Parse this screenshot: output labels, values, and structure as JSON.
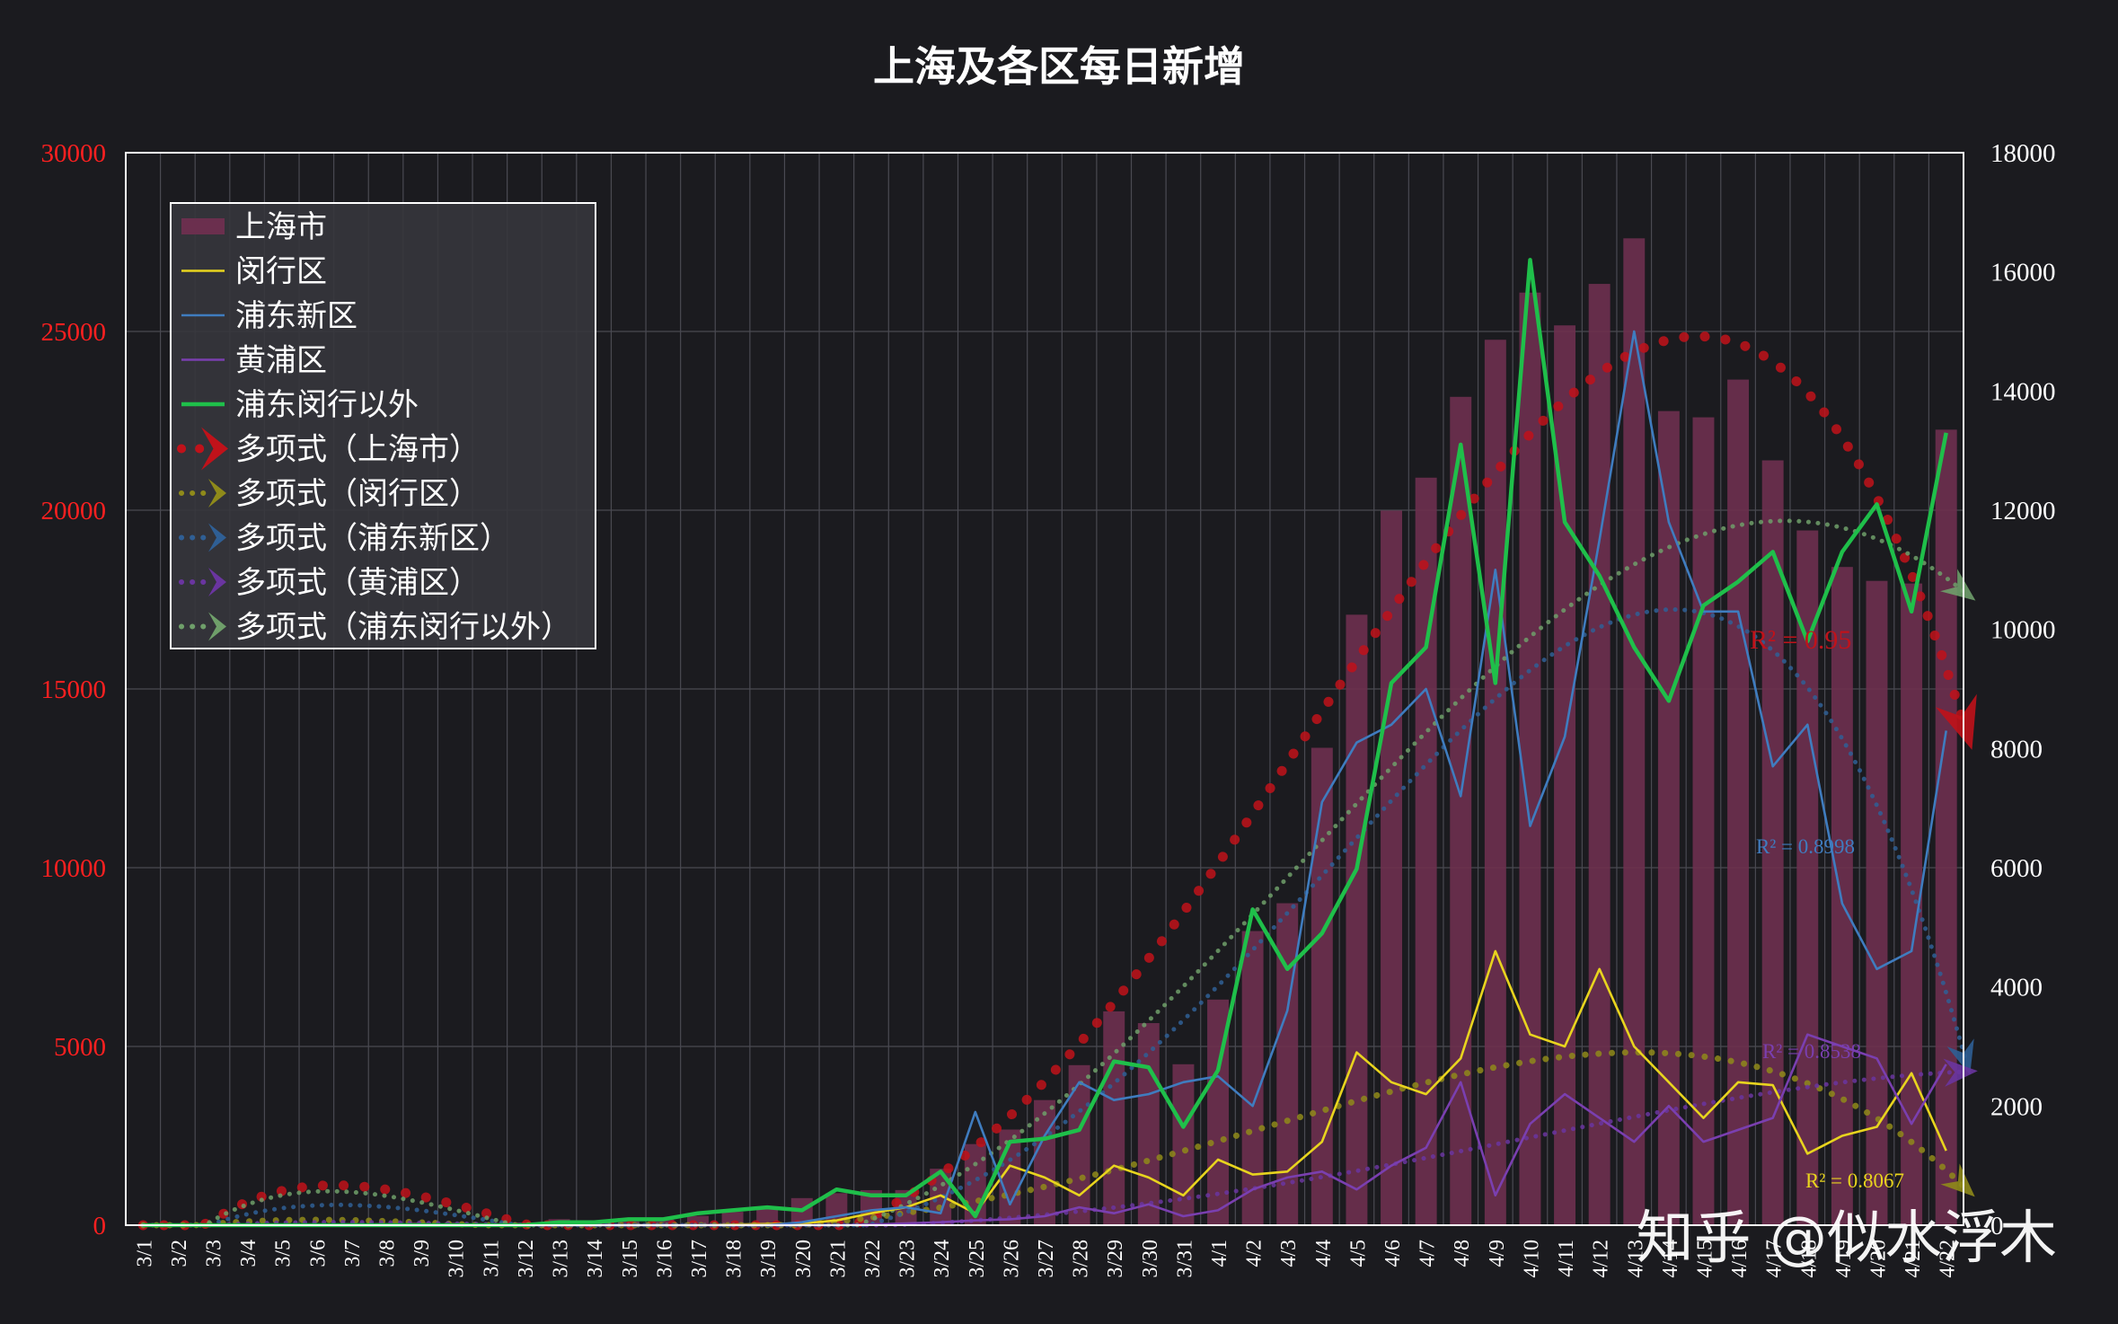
{
  "watermark": "知乎 @似水浮木",
  "colors": {
    "background": "#1b1b1f",
    "plot_border": "#ffffff",
    "grid": "#4a4a52",
    "bar": "#6b2f4e",
    "minhang": "#e8d41e",
    "pudong": "#3f7cbf",
    "huangpu": "#7a3fb0",
    "outside": "#1fbf4a",
    "poly_shanghai": "#c0121a",
    "poly_minhang": "#8f8a1a",
    "poly_pudong": "#2f5f95",
    "poly_huangpu": "#6a35a0",
    "poly_outside": "#6f9f6a",
    "left_axis_text": "#ff2020",
    "right_axis_text": "#ffffff"
  },
  "chart_data": {
    "type": "bar",
    "title": "上海及各区每日新增",
    "legend_position": "top-left",
    "grid": true,
    "categories": [
      "3/1",
      "3/2",
      "3/3",
      "3/4",
      "3/5",
      "3/6",
      "3/7",
      "3/8",
      "3/9",
      "3/10",
      "3/11",
      "3/12",
      "3/13",
      "3/14",
      "3/15",
      "3/16",
      "3/17",
      "3/18",
      "3/19",
      "3/20",
      "3/21",
      "3/22",
      "3/23",
      "3/24",
      "3/25",
      "3/26",
      "3/27",
      "3/28",
      "3/29",
      "3/30",
      "3/31",
      "4/1",
      "4/2",
      "4/3",
      "4/4",
      "4/5",
      "4/6",
      "4/7",
      "4/8",
      "4/9",
      "4/10",
      "4/11",
      "4/12",
      "4/13",
      "4/14",
      "4/15",
      "4/16",
      "4/17",
      "4/18",
      "4/19",
      "4/20",
      "4/21",
      "4/22"
    ],
    "y_left": {
      "ylim": [
        0,
        30000
      ],
      "ticks": [
        "0",
        "5000",
        "10000",
        "15000",
        "20000",
        "25000",
        "30000"
      ]
    },
    "y_right": {
      "ylim": [
        0,
        18000
      ],
      "ticks": [
        "0",
        "2000",
        "4000",
        "6000",
        "8000",
        "10000",
        "12000",
        "14000",
        "16000",
        "18000"
      ]
    },
    "series": [
      {
        "name": "上海市",
        "type": "bar",
        "axis": "left",
        "values": [
          2,
          8,
          5,
          16,
          19,
          45,
          62,
          64,
          79,
          76,
          64,
          76,
          169,
          138,
          202,
          158,
          260,
          374,
          509,
          758,
          896,
          981,
          983,
          1580,
          2269,
          2676,
          3500,
          4477,
          5982,
          5653,
          4502,
          6311,
          8228,
          9006,
          13354,
          17077,
          19989,
          20910,
          23171,
          24768,
          26087,
          25170,
          26330,
          27605,
          22773,
          22598,
          23654,
          21394,
          19434,
          18412,
          18023,
          17950,
          22253
        ]
      },
      {
        "name": "闵行区",
        "type": "line",
        "axis": "right",
        "values": [
          0,
          0,
          0,
          0,
          0,
          0,
          0,
          0,
          0,
          0,
          0,
          0,
          0,
          0,
          0,
          0,
          0,
          10,
          20,
          30,
          80,
          200,
          300,
          500,
          200,
          1000,
          800,
          500,
          1000,
          800,
          500,
          1100,
          850,
          900,
          1400,
          2900,
          2400,
          2200,
          2800,
          4600,
          3200,
          3000,
          4300,
          3000,
          2400,
          1800,
          2400,
          2350,
          1200,
          1500,
          1650,
          2550,
          1250
        ]
      },
      {
        "name": "浦东新区",
        "type": "line",
        "axis": "right",
        "values": [
          0,
          0,
          0,
          0,
          0,
          0,
          0,
          0,
          0,
          0,
          0,
          0,
          0,
          0,
          0,
          0,
          0,
          0,
          0,
          50,
          150,
          250,
          300,
          200,
          1900,
          350,
          1500,
          2400,
          2100,
          2200,
          2400,
          2500,
          2000,
          3600,
          7100,
          8100,
          8400,
          9000,
          7200,
          11000,
          6700,
          8200,
          11500,
          15000,
          11800,
          10300,
          10300,
          7700,
          8400,
          5400,
          4300,
          4600,
          8300
        ]
      },
      {
        "name": "黄浦区",
        "type": "line",
        "axis": "right",
        "values": [
          0,
          0,
          0,
          0,
          0,
          0,
          0,
          0,
          0,
          0,
          0,
          0,
          0,
          0,
          0,
          0,
          0,
          0,
          0,
          0,
          0,
          10,
          30,
          50,
          80,
          100,
          150,
          300,
          200,
          350,
          150,
          250,
          600,
          800,
          900,
          600,
          1000,
          1300,
          2400,
          500,
          1700,
          2200,
          1800,
          1400,
          2000,
          1400,
          1600,
          1800,
          3200,
          3000,
          2800,
          1700,
          2700
        ]
      },
      {
        "name": "浦东闵行以外",
        "type": "line",
        "axis": "right",
        "values": [
          0,
          0,
          0,
          0,
          0,
          0,
          0,
          0,
          0,
          0,
          0,
          0,
          50,
          50,
          100,
          100,
          200,
          250,
          300,
          250,
          600,
          500,
          500,
          900,
          150,
          1400,
          1450,
          1600,
          2750,
          2650,
          1650,
          2600,
          5300,
          4300,
          4900,
          5980,
          9100,
          9700,
          13100,
          9100,
          16200,
          11800,
          10900,
          9700,
          8800,
          10400,
          10800,
          11300,
          9800,
          11300,
          12100,
          10300,
          13300
        ]
      }
    ],
    "trendlines": [
      {
        "name": "多项式（上海市）",
        "axis": "left",
        "r2": "R² = 0.95"
      },
      {
        "name": "多项式（闵行区）",
        "axis": "right",
        "r2": "R² = 0.8067"
      },
      {
        "name": "多项式（浦东新区）",
        "axis": "right",
        "r2": "R² = 0.8998"
      },
      {
        "name": "多项式（黄浦区）",
        "axis": "right",
        "r2": "R² = 0.8538"
      },
      {
        "name": "多项式（浦东闵行以外）",
        "axis": "right",
        "r2": ""
      }
    ]
  }
}
